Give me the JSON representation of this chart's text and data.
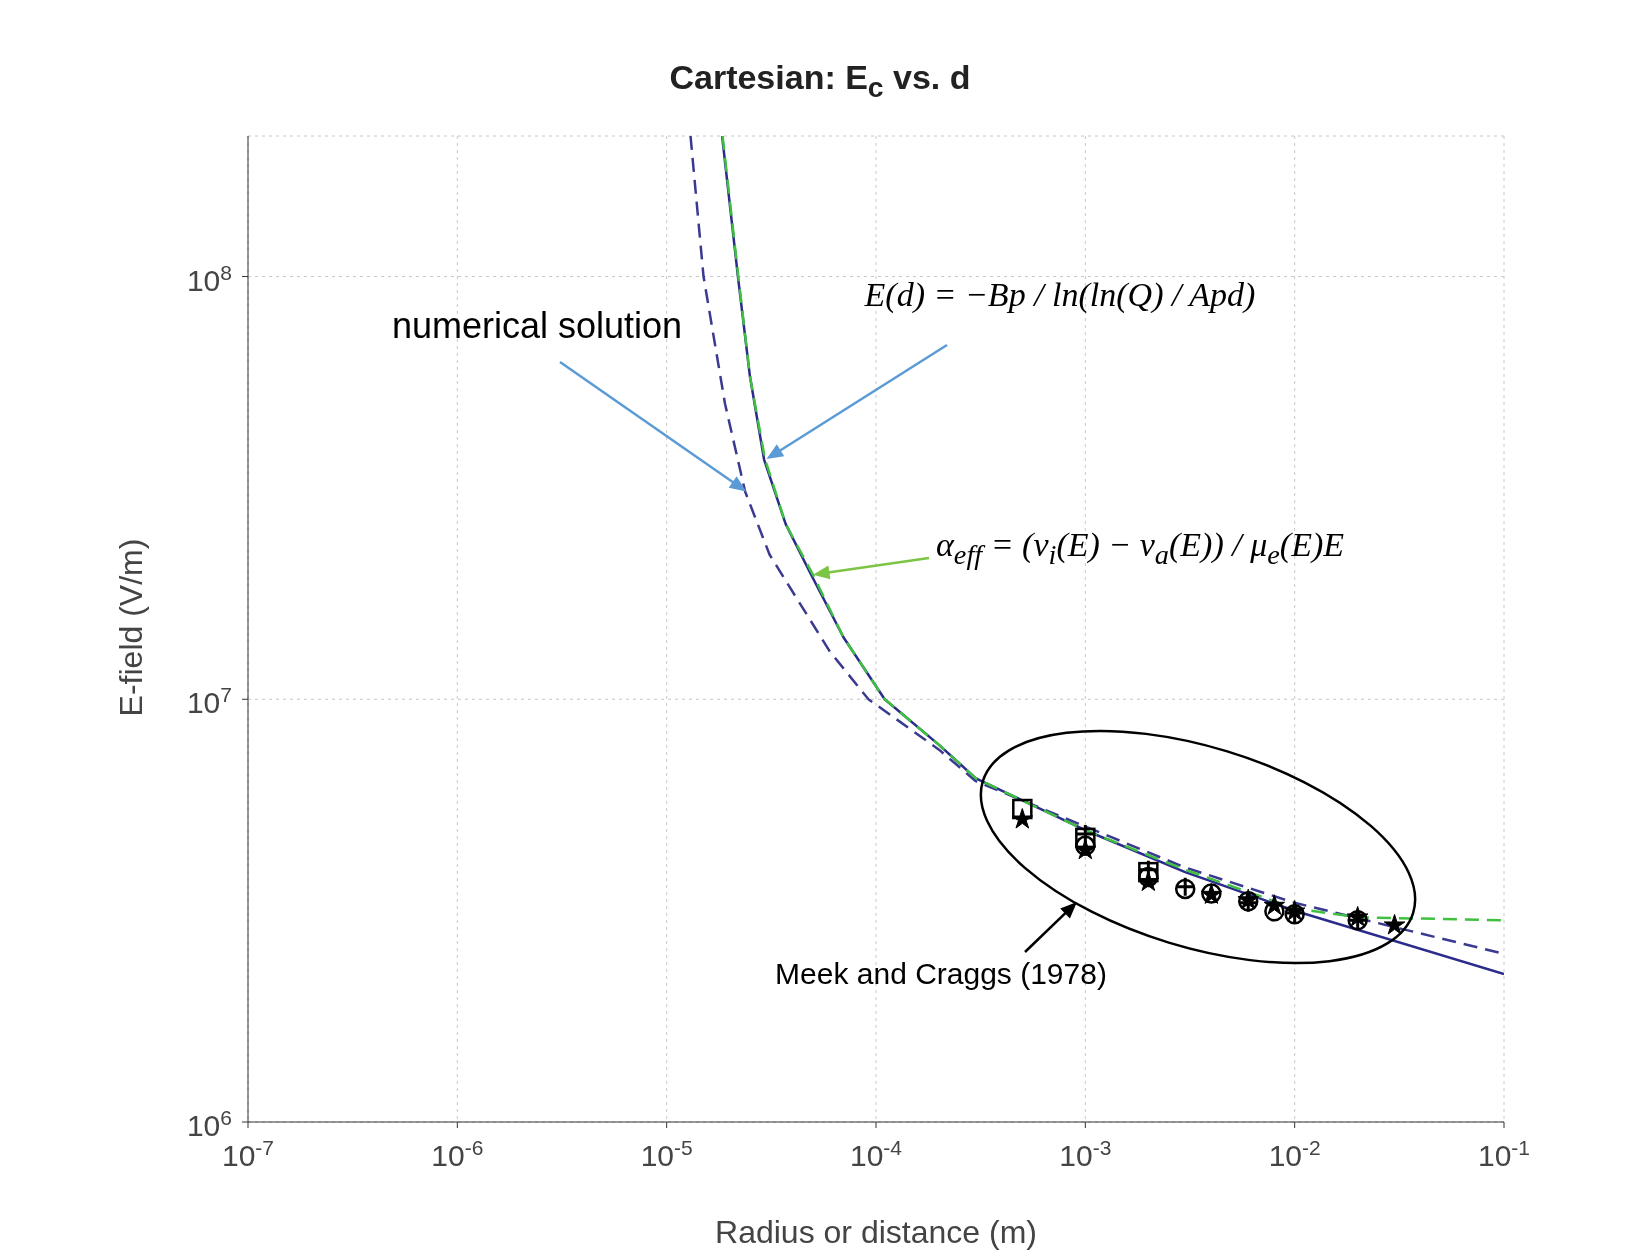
{
  "chart_data": {
    "type": "line",
    "title": "Cartesian: E$_{c}$ vs. d",
    "xlabel": "Radius or distance (m)",
    "ylabel": "E-field (V/m)",
    "log": "xy",
    "grid": true,
    "xlim": [
      1e-07,
      0.1
    ],
    "ylim": [
      1000000,
      215000000
    ],
    "xticks": [
      {
        "value": 1e-07,
        "label": "10$^{-7}$"
      },
      {
        "value": 1e-06,
        "label": "10$^{-6}$"
      },
      {
        "value": 1e-05,
        "label": "10$^{-5}$"
      },
      {
        "value": 0.0001,
        "label": "10$^{-4}$"
      },
      {
        "value": 0.001,
        "label": "10$^{-3}$"
      },
      {
        "value": 0.01,
        "label": "10$^{-2}$"
      },
      {
        "value": 0.1,
        "label": "10$^{-1}$"
      }
    ],
    "yticks": [
      {
        "value": 1000000,
        "label": "10$^{6}$"
      },
      {
        "value": 10000000,
        "label": "10$^{7}$"
      },
      {
        "value": 100000000,
        "label": "10$^{8}$"
      }
    ],
    "series": [
      {
        "color": "#2b2b8c",
        "line_style": "solid",
        "x": [
          1.84e-05,
          2.19e-05,
          2.5e-05,
          2.92e-05,
          3.7e-05,
          4.9e-05,
          7e-05,
          0.00011,
          0.0002,
          0.0003,
          0.001,
          0.003,
          0.01,
          0.1
        ],
        "values": [
          215000000,
          100000000,
          58000000,
          36900000,
          26000000,
          19700000,
          14000000,
          10000000,
          7800000,
          6500000,
          4900000,
          3900000,
          3160000,
          2240000
        ]
      },
      {
        "color": "#3a3a90",
        "line_style": "dashed",
        "x": [
          1.3e-05,
          1.5e-05,
          1.9e-05,
          2.37e-05,
          3.1e-05,
          4.1e-05,
          6e-05,
          9.2e-05,
          0.0002,
          0.0003,
          0.001,
          0.003,
          0.01,
          0.1
        ],
        "values": [
          215000000,
          100000000,
          50000000,
          31000000,
          22000000,
          17600000,
          13000000,
          10000000,
          7600000,
          6400000,
          5000000,
          4000000,
          3300000,
          2500000
        ]
      },
      {
        "color": "#40c040",
        "line_style": "dashed",
        "x": [
          1.85e-05,
          2.2e-05,
          2.5e-05,
          2.95e-05,
          3.7e-05,
          5e-05,
          7e-05,
          0.00011,
          0.0002,
          0.0003,
          0.001,
          0.003,
          0.01,
          0.02,
          0.1
        ],
        "values": [
          215000000,
          100000000,
          58000000,
          37000000,
          26000000,
          19700000,
          14000000,
          10000000,
          7800000,
          6500000,
          4900000,
          3950000,
          3200000,
          3050000,
          3000000
        ]
      },
      {
        "type": "scatter",
        "color": "#000000",
        "marker": "square",
        "x": [
          0.0005,
          0.001,
          0.002
        ],
        "values": [
          5500000,
          4700000,
          3900000
        ]
      },
      {
        "type": "scatter",
        "color": "#000000",
        "marker": "circle",
        "x": [
          0.001,
          0.002,
          0.003,
          0.004,
          0.006,
          0.008,
          0.01,
          0.02
        ],
        "values": [
          4500000,
          3800000,
          3560000,
          3470000,
          3330000,
          3150000,
          3100000,
          3000000
        ]
      },
      {
        "type": "scatter",
        "color": "#000000",
        "marker": "star",
        "x": [
          0.0005,
          0.001,
          0.002,
          0.004,
          0.006,
          0.008,
          0.01,
          0.02,
          0.03
        ],
        "values": [
          5200000,
          4400000,
          3700000,
          3450000,
          3350000,
          3250000,
          3150000,
          3050000,
          2920000
        ]
      },
      {
        "type": "scatter",
        "color": "#000000",
        "marker": "cross",
        "x": [
          0.001,
          0.002,
          0.003,
          0.006,
          0.01,
          0.02
        ],
        "values": [
          4800000,
          3950000,
          3600000,
          3300000,
          3120000,
          3000000
        ]
      }
    ],
    "annotations": [
      "numerical solution",
      "E(d) = −Bp / ln(ln(Q) / Apd)",
      "α$_{eff}$ = (ν$_{i}$(E) − ν$_{a}$(E)) / μ$_{e}$(E)E",
      "Meek and Craggs (1978)"
    ]
  }
}
